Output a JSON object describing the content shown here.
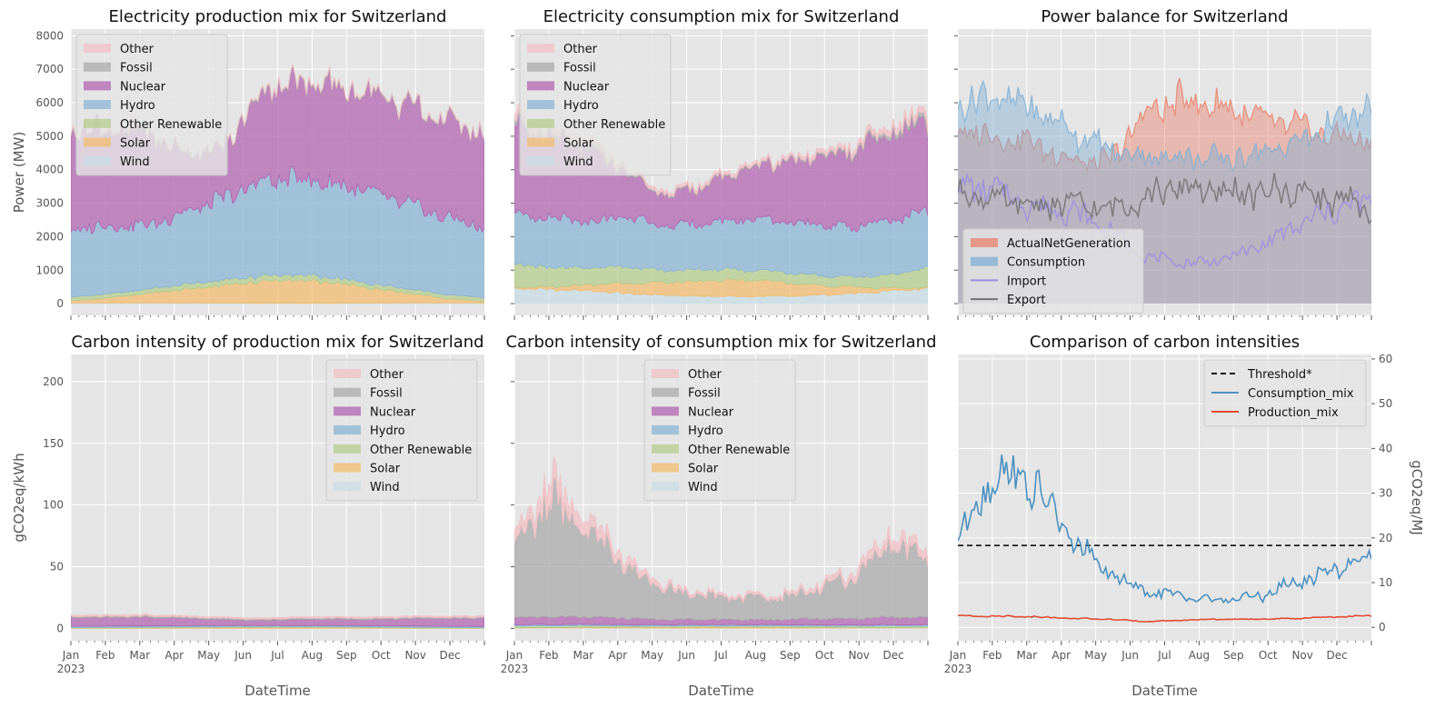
{
  "months": [
    "Jan",
    "Feb",
    "Mar",
    "Apr",
    "May",
    "Jun",
    "Jul",
    "Aug",
    "Sep",
    "Oct",
    "Nov",
    "Dec"
  ],
  "year_label": "2023",
  "xlabel": "DateTime",
  "colors": {
    "Other": "#f2c0c4",
    "Fossil": "#aaaaaa",
    "Nuclear": "#b064b0",
    "Hydro": "#8ab4d4",
    "Other Renewable": "#b4cc8c",
    "Solar": "#f2bc70",
    "Wind": "#c8dce6",
    "ActualNetGeneration": "#e8816c",
    "Consumption": "#7fafd4",
    "Import": "#9a8ee0",
    "Export": "#707070",
    "Threshold": "#111111",
    "Consumption_mix": "#4a90c0",
    "Production_mix": "#e24a33"
  },
  "chart_data": [
    {
      "id": "prod",
      "type": "area",
      "title": "Electricity production mix for Switzerland",
      "ylabel": "Power (MW)",
      "ylim": [
        -350,
        8200
      ],
      "yticks": [
        0,
        1000,
        2000,
        3000,
        4000,
        5000,
        6000,
        7000,
        8000
      ],
      "legend": "top-left",
      "series": [
        {
          "name": "Other",
          "values": [
            20,
            20,
            20,
            20,
            20,
            20,
            20,
            20,
            20,
            20,
            20,
            20
          ]
        },
        {
          "name": "Fossil",
          "values": [
            40,
            40,
            40,
            40,
            40,
            40,
            40,
            40,
            40,
            40,
            40,
            40
          ]
        },
        {
          "name": "Nuclear",
          "values": [
            3000,
            2900,
            2800,
            1800,
            1400,
            2600,
            2900,
            2900,
            2900,
            2900,
            2900,
            2700
          ]
        },
        {
          "name": "Hydro",
          "values": [
            2000,
            2050,
            1900,
            2150,
            2400,
            2800,
            2900,
            2800,
            2700,
            2500,
            2300,
            2100
          ]
        },
        {
          "name": "Other Renewable",
          "values": [
            120,
            120,
            130,
            150,
            160,
            160,
            160,
            150,
            140,
            130,
            120,
            110
          ]
        },
        {
          "name": "Solar",
          "values": [
            60,
            150,
            280,
            400,
            520,
            650,
            700,
            600,
            450,
            300,
            130,
            50
          ]
        },
        {
          "name": "Wind",
          "values": [
            20,
            20,
            20,
            20,
            15,
            10,
            10,
            10,
            15,
            20,
            20,
            20
          ]
        }
      ]
    },
    {
      "id": "cons",
      "type": "area",
      "title": "Electricity consumption mix for Switzerland",
      "ylabel": "",
      "ylim": [
        -350,
        8200
      ],
      "yticks": [
        0,
        1000,
        2000,
        3000,
        4000,
        5000,
        6000,
        7000,
        8000
      ],
      "legend": "top-left",
      "series": [
        {
          "name": "Other",
          "values": [
            200,
            180,
            160,
            100,
            80,
            80,
            80,
            80,
            100,
            120,
            160,
            180
          ]
        },
        {
          "name": "Fossil",
          "values": [
            150,
            140,
            120,
            60,
            40,
            40,
            40,
            40,
            60,
            80,
            120,
            150
          ]
        },
        {
          "name": "Nuclear",
          "values": [
            2600,
            2400,
            2200,
            1300,
            900,
            1100,
            1500,
            1700,
            2000,
            2300,
            2500,
            2700
          ]
        },
        {
          "name": "Hydro",
          "values": [
            1500,
            1500,
            1400,
            1500,
            1300,
            1400,
            1500,
            1500,
            1500,
            1500,
            1600,
            1700
          ]
        },
        {
          "name": "Other Renewable",
          "values": [
            700,
            600,
            500,
            500,
            350,
            350,
            300,
            300,
            300,
            300,
            400,
            600
          ]
        },
        {
          "name": "Solar",
          "values": [
            30,
            80,
            180,
            300,
            380,
            450,
            500,
            430,
            300,
            200,
            80,
            30
          ]
        },
        {
          "name": "Wind",
          "values": [
            450,
            420,
            380,
            300,
            250,
            220,
            220,
            220,
            250,
            300,
            380,
            450
          ]
        }
      ]
    },
    {
      "id": "balance",
      "type": "area",
      "title": "Power balance for Switzerland",
      "ylabel": "",
      "ylim": [
        -350,
        8200
      ],
      "legend": "bottom-left",
      "series": [
        {
          "name": "ActualNetGeneration",
          "style": "area",
          "values": [
            5200,
            5000,
            4800,
            4300,
            4200,
            5700,
            6100,
            5900,
            5500,
            5300,
            5000,
            4900
          ]
        },
        {
          "name": "Consumption",
          "style": "area",
          "values": [
            6000,
            6200,
            5800,
            5200,
            4600,
            4400,
            4400,
            4300,
            4500,
            4800,
            5400,
            5800
          ]
        },
        {
          "name": "Import",
          "style": "line",
          "values": [
            3500,
            3400,
            2900,
            2800,
            2200,
            1400,
            1200,
            1300,
            1700,
            2300,
            2800,
            3100
          ]
        },
        {
          "name": "Export",
          "style": "line",
          "values": [
            3400,
            3100,
            2900,
            3000,
            2800,
            3200,
            3500,
            3300,
            3300,
            3400,
            3100,
            2800
          ]
        }
      ]
    },
    {
      "id": "ci_prod",
      "type": "area",
      "title": "Carbon intensity of production mix for Switzerland",
      "ylabel": "gCO2eq/kWh",
      "ylim": [
        -10,
        222
      ],
      "yticks": [
        0,
        50,
        100,
        150,
        200
      ],
      "legend": "top-right",
      "series": [
        {
          "name": "Other",
          "values": [
            1,
            1,
            1,
            1,
            1,
            1,
            1,
            1,
            1,
            1,
            1,
            1
          ]
        },
        {
          "name": "Fossil",
          "values": [
            1,
            1,
            1,
            1,
            1,
            1,
            1,
            1,
            1,
            1,
            1,
            1
          ]
        },
        {
          "name": "Nuclear",
          "values": [
            7,
            7,
            7,
            6,
            5,
            4,
            5,
            5,
            5,
            6,
            6,
            7
          ]
        },
        {
          "name": "Hydro",
          "values": [
            1,
            1,
            1,
            1,
            1,
            1,
            1,
            1,
            1,
            1,
            1,
            1
          ]
        },
        {
          "name": "Other Renewable",
          "values": [
            0.5,
            0.5,
            0.5,
            0.5,
            0.5,
            0.5,
            0.5,
            0.5,
            0.5,
            0.5,
            0.5,
            0.5
          ]
        },
        {
          "name": "Solar",
          "values": [
            0.2,
            0.3,
            0.5,
            0.7,
            0.8,
            0.9,
            0.9,
            0.8,
            0.6,
            0.4,
            0.2,
            0.1
          ]
        },
        {
          "name": "Wind",
          "values": [
            0,
            0,
            0,
            0,
            0,
            0,
            0,
            0,
            0,
            0,
            0,
            0
          ]
        }
      ]
    },
    {
      "id": "ci_cons",
      "type": "area",
      "title": "Carbon intensity of consumption mix for Switzerland",
      "ylabel": "",
      "ylim": [
        -10,
        222
      ],
      "yticks": [
        0,
        50,
        100,
        150,
        200
      ],
      "legend": "top-center",
      "series": [
        {
          "name": "Other",
          "values": [
            8,
            14,
            10,
            6,
            3,
            2,
            2,
            2,
            3,
            5,
            8,
            6
          ]
        },
        {
          "name": "Fossil",
          "values": [
            60,
            95,
            70,
            40,
            25,
            20,
            18,
            18,
            25,
            35,
            60,
            45
          ]
        },
        {
          "name": "Nuclear",
          "values": [
            6,
            6,
            6,
            5,
            4,
            4,
            4,
            4,
            5,
            5,
            6,
            6
          ]
        },
        {
          "name": "Hydro",
          "values": [
            1,
            1,
            1,
            1,
            1,
            1,
            1,
            1,
            1,
            1,
            1,
            1
          ]
        },
        {
          "name": "Other Renewable",
          "values": [
            1.5,
            1.5,
            1.5,
            1,
            1,
            1,
            1,
            1,
            1,
            1,
            1.5,
            1.5
          ]
        },
        {
          "name": "Solar",
          "values": [
            0.2,
            0.3,
            0.5,
            0.7,
            0.8,
            0.9,
            0.9,
            0.8,
            0.6,
            0.4,
            0.2,
            0.1
          ]
        },
        {
          "name": "Wind",
          "values": [
            0.3,
            0.3,
            0.3,
            0.3,
            0.2,
            0.2,
            0.2,
            0.2,
            0.2,
            0.3,
            0.3,
            0.3
          ]
        }
      ]
    },
    {
      "id": "compare",
      "type": "line",
      "title": "Comparison of carbon intensities",
      "ylabel": "gCO2eq/MJ",
      "ylim": [
        -3,
        61
      ],
      "yticks": [
        0,
        10,
        20,
        30,
        40,
        50,
        60
      ],
      "legend": "top-right",
      "series": [
        {
          "name": "Threshold*",
          "style": "dashed",
          "values": [
            18.3,
            18.3,
            18.3,
            18.3,
            18.3,
            18.3,
            18.3,
            18.3,
            18.3,
            18.3,
            18.3,
            18.3
          ]
        },
        {
          "name": "Consumption_mix",
          "style": "line",
          "values": [
            20,
            35,
            32,
            20,
            12,
            8,
            7,
            6,
            7,
            10,
            13,
            16
          ]
        },
        {
          "name": "Production_mix",
          "style": "line",
          "values": [
            2.6,
            2.5,
            2.4,
            2.0,
            1.8,
            1.3,
            1.6,
            1.8,
            1.8,
            2.0,
            2.3,
            2.6
          ]
        }
      ]
    }
  ]
}
